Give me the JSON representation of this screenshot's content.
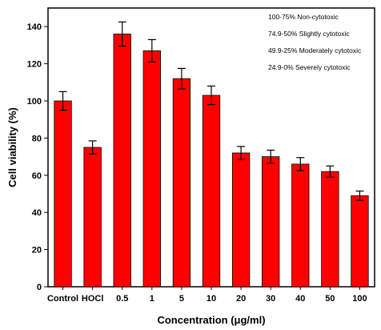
{
  "chart_data": {
    "type": "bar",
    "categories": [
      "Control",
      "HOCl",
      "0.5",
      "1",
      "5",
      "10",
      "20",
      "30",
      "40",
      "50",
      "100"
    ],
    "values": [
      100,
      75,
      136,
      127,
      112,
      103,
      72,
      70,
      66,
      62,
      49
    ],
    "errors": [
      5,
      3.5,
      6.5,
      6,
      5.5,
      5,
      3.5,
      3.5,
      3.5,
      3,
      2.5
    ],
    "xlabel": "Concentration (μg/ml)",
    "ylabel": "Cell viability (%)",
    "ylim": [
      0,
      150
    ],
    "yticks": [
      0,
      20,
      40,
      60,
      80,
      100,
      120,
      140
    ],
    "bar_color": "#ff0000",
    "grid": false,
    "legend_placement": "top-right",
    "annotations": [
      "100-75%  Non-cytotoxic",
      "74.9-50%  Slightly cytotoxic",
      "49.9-25%  Moderately cytotoxic",
      "24.9-0%   Severely cytotoxic"
    ]
  }
}
